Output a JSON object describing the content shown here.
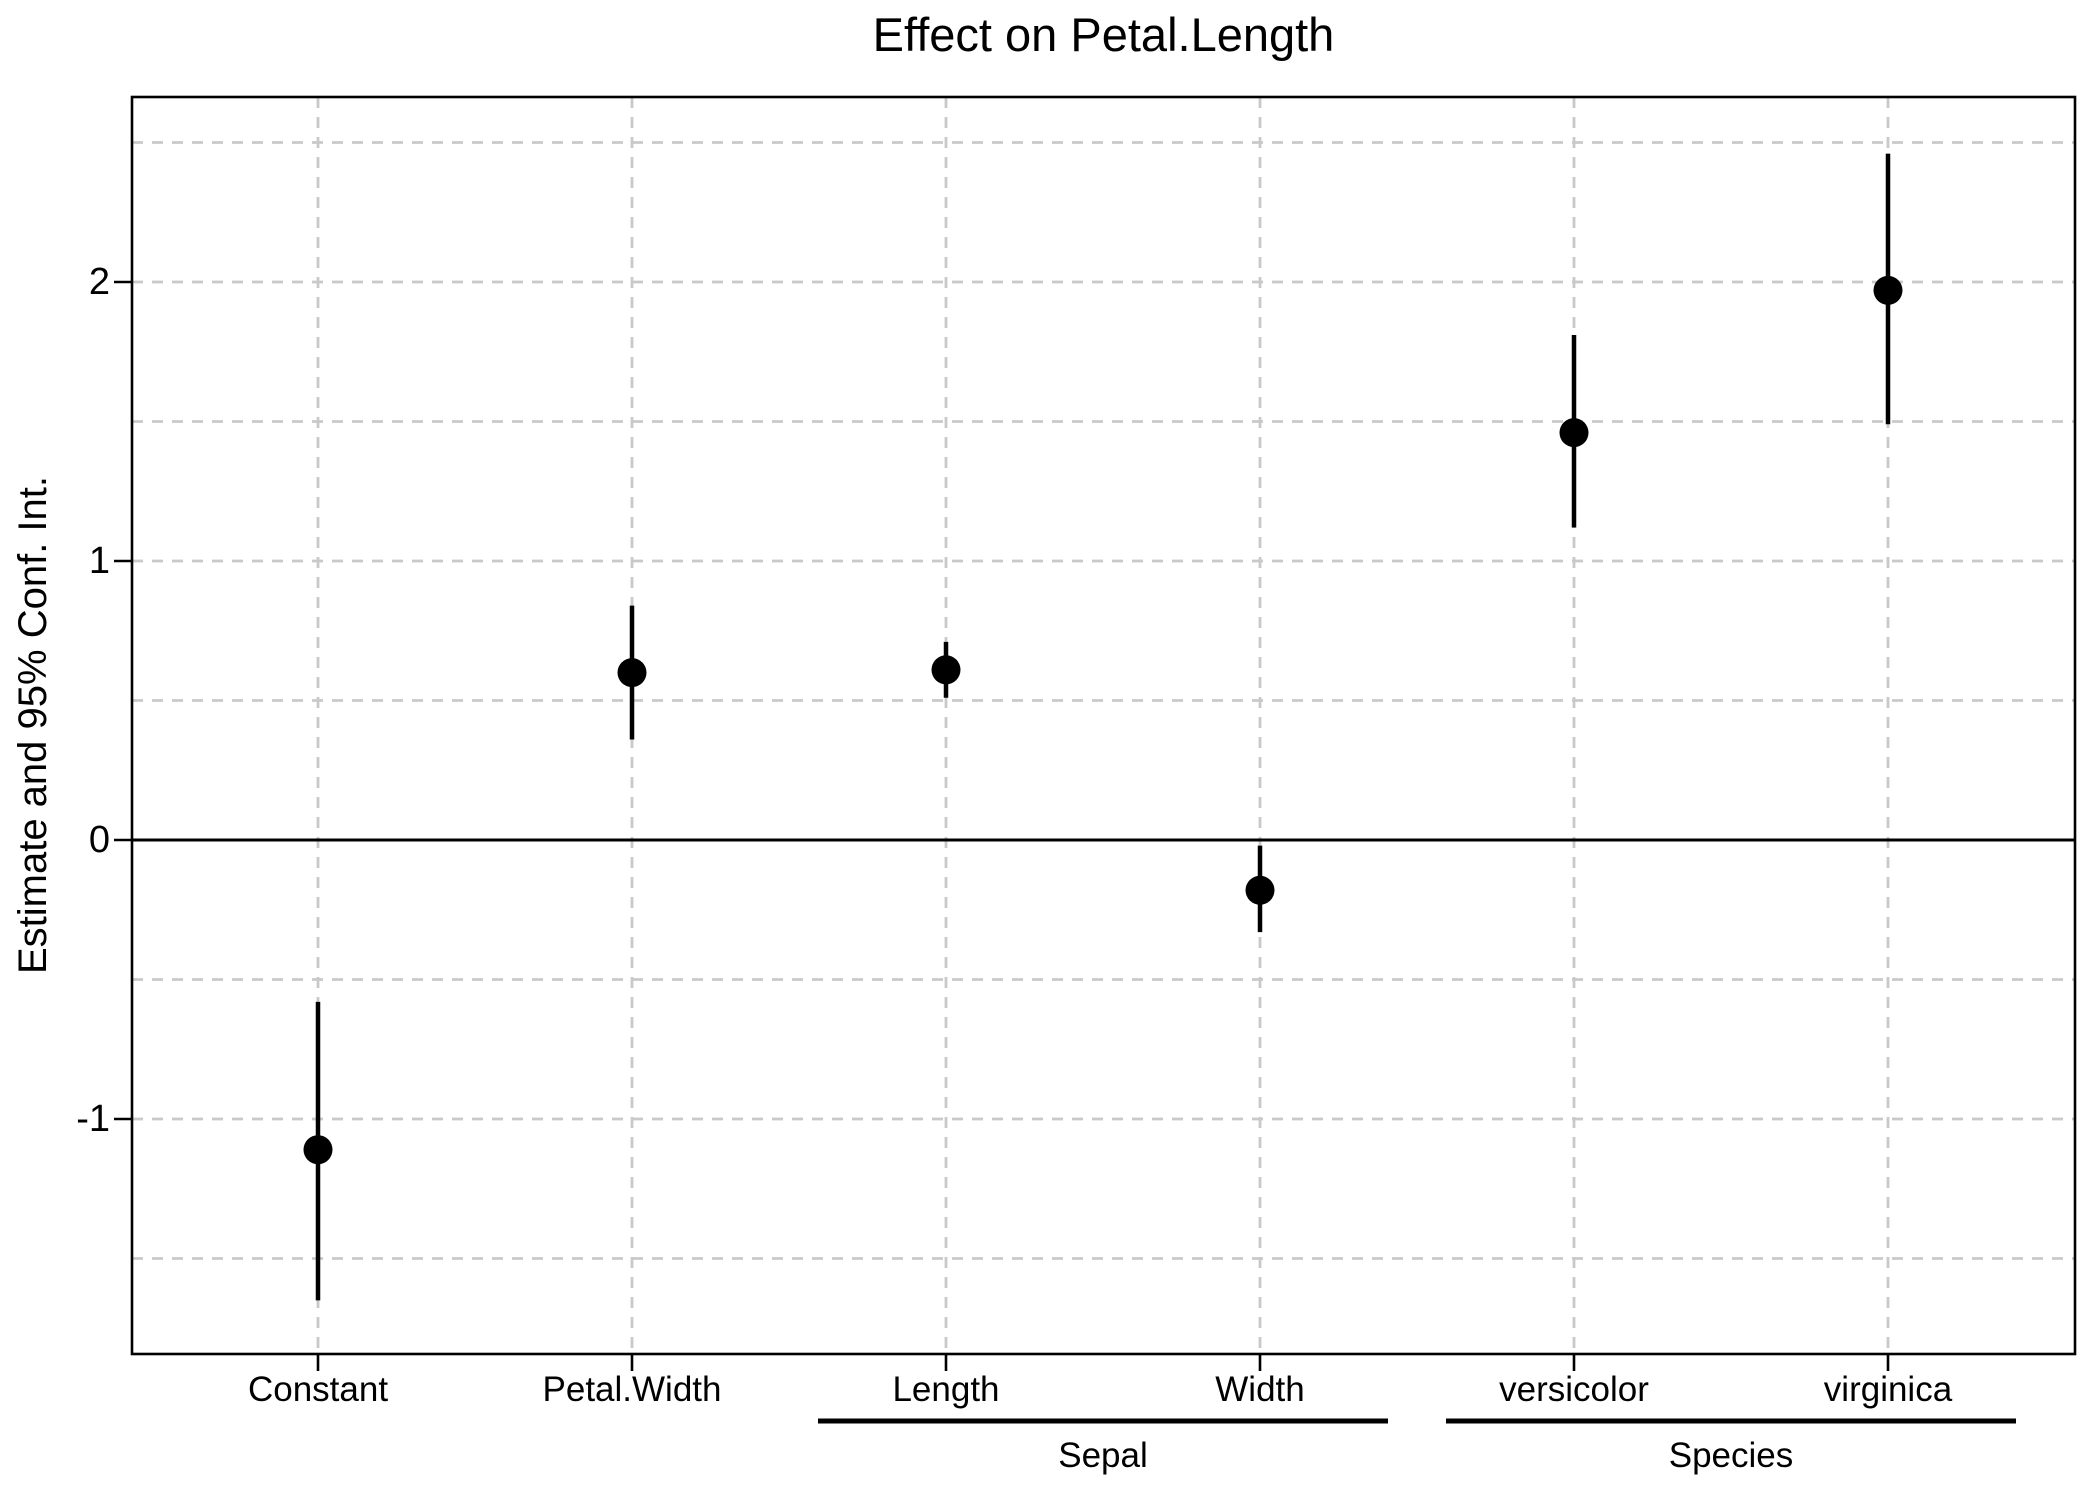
{
  "chart_data": {
    "type": "scatter",
    "subtype": "coefficient-dot-whisker-plot",
    "title": "Effect on Petal.Length",
    "xlabel": "",
    "ylabel": "Estimate and 95% Conf. Int.",
    "ylim": [
      -1.84,
      2.66
    ],
    "grid": true,
    "legend": false,
    "y_ticks": [
      2,
      1,
      0,
      -1
    ],
    "y_tick_labels": [
      "2",
      "1",
      "0",
      "-1"
    ],
    "gridlines_y": [
      2.5,
      2,
      1.5,
      1,
      0.5,
      -0.5,
      -1,
      -1.5
    ],
    "zero_reference_line": 0,
    "categories": [
      "Constant",
      "Petal.Width",
      "Length",
      "Width",
      "versicolor",
      "virginica"
    ],
    "points": [
      {
        "label": "Constant",
        "estimate": -1.11,
        "ci_low": -1.65,
        "ci_high": -0.58
      },
      {
        "label": "Petal.Width",
        "estimate": 0.6,
        "ci_low": 0.36,
        "ci_high": 0.84
      },
      {
        "label": "Length",
        "estimate": 0.61,
        "ci_low": 0.51,
        "ci_high": 0.71
      },
      {
        "label": "Width",
        "estimate": -0.18,
        "ci_low": -0.33,
        "ci_high": -0.02
      },
      {
        "label": "versicolor",
        "estimate": 1.46,
        "ci_low": 1.12,
        "ci_high": 1.81
      },
      {
        "label": "virginica",
        "estimate": 1.97,
        "ci_low": 1.49,
        "ci_high": 2.46
      }
    ],
    "groups": [
      {
        "label": "Sepal",
        "members": [
          "Length",
          "Width"
        ]
      },
      {
        "label": "Species",
        "members": [
          "versicolor",
          "virginica"
        ]
      }
    ],
    "marker_color": "#000000",
    "axis_color": "#000000",
    "grid_color": "#c9c9c9"
  }
}
